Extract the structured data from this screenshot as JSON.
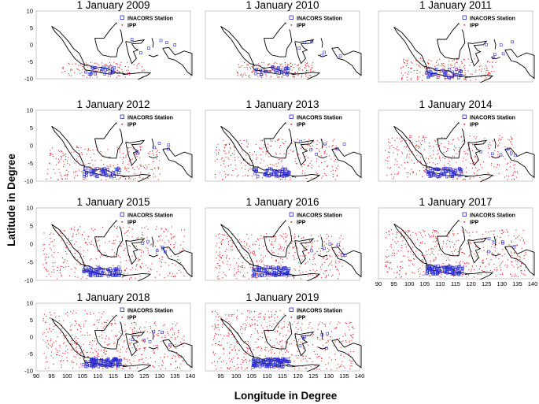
{
  "figure": {
    "xlabel": "Longitude in Degree",
    "ylabel": "Latitude in Degree"
  },
  "legend": {
    "station_label": "INACORS Station",
    "ipp_label": "IPP",
    "station_color": "#2b2bd4",
    "ipp_color": "#e8231e",
    "coast_color": "#000000"
  },
  "chart_data": [
    {
      "type": "scatter",
      "title": "1 January 2009",
      "xlim": [
        90,
        140
      ],
      "ylim": [
        -10,
        10
      ],
      "yticks": [
        10,
        5,
        0,
        -5,
        -10
      ],
      "xticks": [],
      "ipp_extent": {
        "lon": [
          98,
          125
        ],
        "lat": [
          -9.5,
          -5
        ]
      },
      "series": [
        {
          "name": "INACORS Station"
        },
        {
          "name": "IPP"
        }
      ]
    },
    {
      "type": "scatter",
      "title": "1 January 2010",
      "xlim": [
        90,
        140
      ],
      "ylim": [
        -10,
        10
      ],
      "yticks": [],
      "xticks": [],
      "ipp_extent": {
        "lon": [
          100,
          125
        ],
        "lat": [
          -9.5,
          -5
        ]
      },
      "series": [
        {
          "name": "INACORS Station"
        },
        {
          "name": "IPP"
        }
      ]
    },
    {
      "type": "scatter",
      "title": "1 January  2011",
      "xlim": [
        90,
        140
      ],
      "ylim": [
        -10,
        10
      ],
      "yticks": [],
      "xticks": [],
      "ipp_extent": {
        "lon": [
          97,
          128
        ],
        "lat": [
          -9.5,
          -3
        ]
      },
      "series": [
        {
          "name": "INACORS Station"
        },
        {
          "name": "IPP"
        }
      ]
    },
    {
      "type": "scatter",
      "title": "1 January 2012",
      "xlim": [
        90,
        140
      ],
      "ylim": [
        -10,
        10
      ],
      "yticks": [
        10,
        5,
        0,
        -5,
        -10
      ],
      "xticks": [],
      "ipp_extent": {
        "lon": [
          93,
          130
        ],
        "lat": [
          -9.5,
          0
        ]
      },
      "series": [
        {
          "name": "INACORS Station"
        },
        {
          "name": "IPP"
        }
      ]
    },
    {
      "type": "scatter",
      "title": "1 January 2013",
      "xlim": [
        90,
        140
      ],
      "ylim": [
        -10,
        10
      ],
      "yticks": [],
      "xticks": [],
      "ipp_extent": {
        "lon": [
          93,
          133
        ],
        "lat": [
          -9.5,
          2
        ]
      },
      "series": [
        {
          "name": "INACORS Station"
        },
        {
          "name": "IPP"
        }
      ]
    },
    {
      "type": "scatter",
      "title": "1 January 2014",
      "xlim": [
        90,
        140
      ],
      "ylim": [
        -10,
        10
      ],
      "yticks": [],
      "xticks": [],
      "ipp_extent": {
        "lon": [
          92,
          135
        ],
        "lat": [
          -9.5,
          3
        ]
      },
      "series": [
        {
          "name": "INACORS Station"
        },
        {
          "name": "IPP"
        }
      ]
    },
    {
      "type": "scatter",
      "title": "1 January 2015",
      "xlim": [
        90,
        140
      ],
      "ylim": [
        -10,
        10
      ],
      "yticks": [
        10,
        5,
        0,
        -5,
        -10
      ],
      "xticks": [],
      "ipp_extent": {
        "lon": [
          92,
          138
        ],
        "lat": [
          -9.5,
          5
        ]
      },
      "series": [
        {
          "name": "INACORS Station"
        },
        {
          "name": "IPP"
        }
      ]
    },
    {
      "type": "scatter",
      "title": "1 January 2016",
      "xlim": [
        90,
        140
      ],
      "ylim": [
        -10,
        10
      ],
      "yticks": [],
      "xticks": [],
      "ipp_extent": {
        "lon": [
          93,
          135
        ],
        "lat": [
          -9.5,
          3
        ]
      },
      "series": [
        {
          "name": "INACORS Station"
        },
        {
          "name": "IPP"
        }
      ]
    },
    {
      "type": "scatter",
      "title": "1 January 2017",
      "xlim": [
        90,
        140
      ],
      "ylim": [
        -10,
        10
      ],
      "yticks": [],
      "xticks": [
        90,
        95,
        100,
        105,
        110,
        115,
        120,
        125,
        130,
        135,
        140
      ],
      "ipp_extent": {
        "lon": [
          92,
          138
        ],
        "lat": [
          -9.5,
          4
        ]
      },
      "series": [
        {
          "name": "INACORS Station"
        },
        {
          "name": "IPP"
        }
      ]
    },
    {
      "type": "scatter",
      "title": "1 January 2018",
      "xlim": [
        90,
        140
      ],
      "ylim": [
        -10,
        10
      ],
      "yticks": [
        10,
        5,
        0,
        -5,
        -10
      ],
      "xticks": [
        90,
        95,
        100,
        105,
        110,
        115,
        120,
        125,
        130,
        135,
        140
      ],
      "ipp_extent": {
        "lon": [
          92,
          138
        ],
        "lat": [
          -9.5,
          8
        ]
      },
      "series": [
        {
          "name": "INACORS Station"
        },
        {
          "name": "IPP"
        }
      ]
    },
    {
      "type": "scatter",
      "title": "1 January 2019",
      "xlim": [
        90,
        140
      ],
      "ylim": [
        -10,
        10
      ],
      "yticks": [],
      "xticks": [
        95,
        100,
        105,
        110,
        115,
        120,
        125,
        130,
        135,
        140
      ],
      "ipp_extent": {
        "lon": [
          92,
          138
        ],
        "lat": [
          -9.5,
          8
        ]
      },
      "series": [
        {
          "name": "INACORS Station"
        },
        {
          "name": "IPP"
        }
      ]
    }
  ]
}
